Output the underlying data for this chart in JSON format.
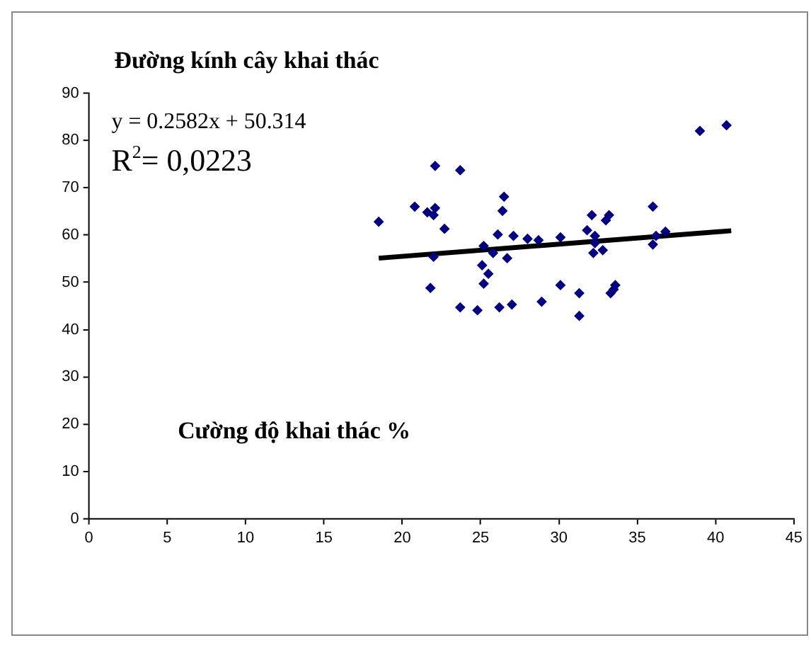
{
  "chart_data": {
    "type": "scatter",
    "title": "Đường kính cây khai thác",
    "xlabel": "Cường độ khai thác %",
    "annotations": [
      "y = 0.2582x + 50.314",
      "R$^{2}$= 0,0223"
    ],
    "series": [
      {
        "type": "scatter",
        "marker": "diamond",
        "color": "#000080",
        "x": [
          18.5,
          20.8,
          21.6,
          22.0,
          22.1,
          22.1,
          22.7,
          23.7,
          21.8,
          22.0,
          23.7,
          24.8,
          26.2,
          27.0,
          25.1,
          25.5,
          25.2,
          25.8,
          26.1,
          26.5,
          26.4,
          26.7,
          27.1,
          25.2,
          28.0,
          28.7,
          28.9,
          30.1,
          30.1,
          31.3,
          31.3,
          31.8,
          32.1,
          32.3,
          32.3,
          32.2,
          32.8,
          33.0,
          33.2,
          33.3,
          33.5,
          33.6,
          36.0,
          36.0,
          36.2,
          36.8,
          39.0,
          40.7
        ],
        "values": [
          62.8,
          66.0,
          64.8,
          64.2,
          65.7,
          74.6,
          61.3,
          73.7,
          48.8,
          55.4,
          44.7,
          44.1,
          44.7,
          45.3,
          53.6,
          51.8,
          49.7,
          56.2,
          60.1,
          68.1,
          65.1,
          55.1,
          59.8,
          57.7,
          59.2,
          58.9,
          45.9,
          49.4,
          59.5,
          47.7,
          42.9,
          61.0,
          64.2,
          59.8,
          58.3,
          56.2,
          56.8,
          63.1,
          64.2,
          47.7,
          48.5,
          49.4,
          66.0,
          58.0,
          59.8,
          60.7,
          82.0,
          83.2
        ]
      },
      {
        "type": "line",
        "marker": "none",
        "color": "#000000",
        "x": [
          18.5,
          41
        ],
        "values": [
          55.1,
          60.9
        ]
      }
    ],
    "xlim": [
      0,
      45
    ],
    "xticks": [
      0,
      5,
      10,
      15,
      20,
      25,
      30,
      35,
      40,
      45
    ],
    "ylim": [
      0,
      90
    ],
    "yticks": [
      0,
      10,
      20,
      30,
      40,
      50,
      60,
      70,
      80,
      90
    ],
    "grid": false,
    "legend": false
  }
}
